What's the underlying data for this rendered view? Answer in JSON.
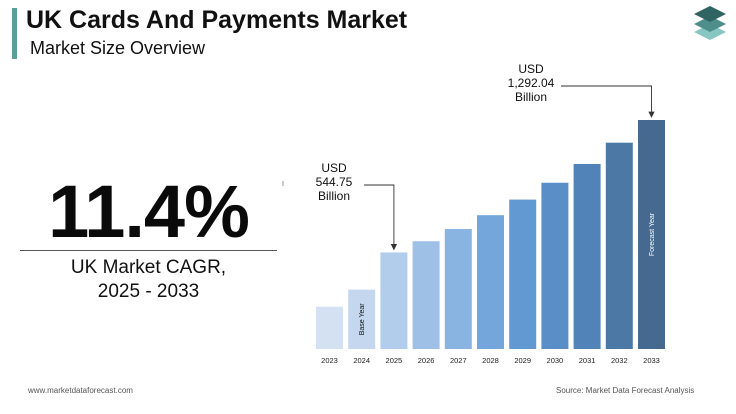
{
  "header": {
    "title": "UK Cards And Payments Market",
    "subtitle": "Market Size Overview"
  },
  "cagr": {
    "value": "11.4%",
    "label_line1": "UK Market CAGR,",
    "label_line2": "2025 - 2033"
  },
  "footer": {
    "website": "www.marketdataforecast.com",
    "source": "Source: Market Data Forecast Analysis"
  },
  "colors": {
    "accent": "#5a9e9a",
    "logo_dark": "#2f6463",
    "logo_mid": "#4f8f8b",
    "logo_light": "#88c6c2"
  },
  "chart_data": {
    "type": "bar",
    "categories": [
      "2023",
      "2024",
      "2025",
      "2026",
      "2027",
      "2028",
      "2029",
      "2030",
      "2031",
      "2032",
      "2033"
    ],
    "values": [
      238.5,
      335.0,
      544.75,
      608.0,
      677.0,
      755.0,
      843.0,
      938.0,
      1044.0,
      1164.0,
      1292.04
    ],
    "bar_colors": [
      "#d4e1f2",
      "#c4d7ef",
      "#b2cdec",
      "#9fc0e6",
      "#89b3e1",
      "#74a6db",
      "#6399d3",
      "#5a8ec7",
      "#5283b8",
      "#4c78a6",
      "#45698f"
    ],
    "bar_labels": [
      {
        "index": 1,
        "text": "Base Year"
      },
      {
        "index": 10,
        "text": "Forecast Year"
      }
    ],
    "annotations": [
      {
        "index": 2,
        "lines": [
          "USD",
          "544.75",
          "Billion"
        ]
      },
      {
        "index": 10,
        "lines": [
          "USD",
          "1,292.04",
          "Billion"
        ]
      }
    ],
    "ylim": [
      0,
      1292.04
    ],
    "xlabel": "",
    "ylabel": "",
    "grid": false,
    "legend": "none"
  }
}
